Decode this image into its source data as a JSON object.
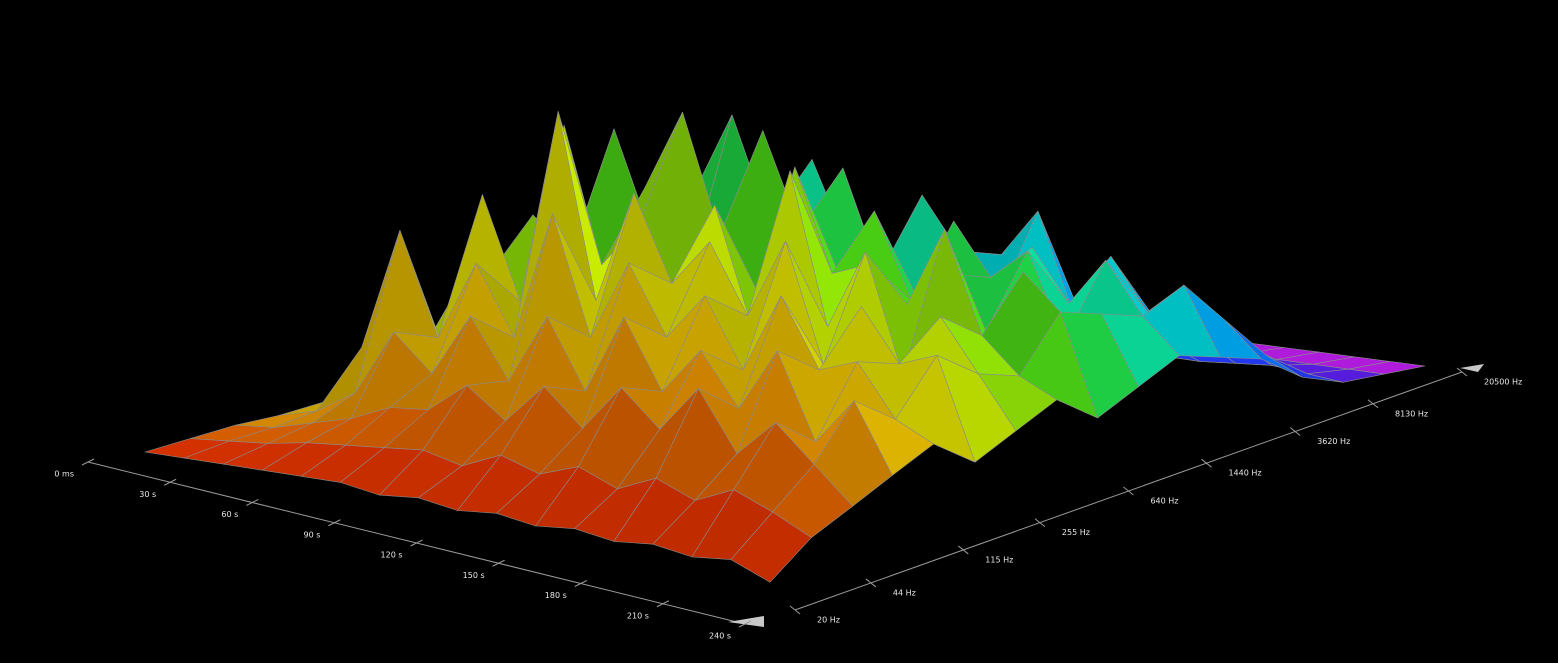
{
  "chart_data": {
    "type": "surface3d",
    "x": [
      0,
      15,
      30,
      45,
      60,
      75,
      90,
      105,
      120,
      135,
      150,
      165,
      180,
      195,
      210,
      225,
      240
    ],
    "y": [
      20,
      31,
      48,
      73,
      113,
      175,
      270,
      416,
      640,
      988,
      1520,
      2350,
      3620,
      5590,
      8620,
      13300,
      20500
    ],
    "z": [
      [
        0,
        1,
        2,
        2,
        3,
        3,
        4,
        5,
        5,
        5,
        4,
        4,
        3,
        2,
        2,
        1,
        0
      ],
      [
        1,
        3,
        4,
        6,
        22,
        10,
        30,
        8,
        12,
        10,
        6,
        5,
        4,
        3,
        2,
        1,
        0
      ],
      [
        2,
        5,
        8,
        14,
        60,
        20,
        40,
        55,
        25,
        12,
        30,
        8,
        6,
        3,
        2,
        1,
        0
      ],
      [
        3,
        8,
        12,
        35,
        30,
        70,
        25,
        45,
        80,
        20,
        15,
        20,
        5,
        4,
        2,
        1,
        0
      ],
      [
        4,
        10,
        18,
        25,
        55,
        40,
        90,
        30,
        50,
        60,
        25,
        10,
        6,
        3,
        2,
        1,
        0
      ],
      [
        5,
        12,
        20,
        45,
        35,
        100,
        50,
        70,
        40,
        85,
        30,
        22,
        8,
        4,
        2,
        1,
        0
      ],
      [
        4,
        14,
        30,
        28,
        75,
        45,
        65,
        95,
        35,
        55,
        70,
        15,
        10,
        5,
        2,
        1,
        0
      ],
      [
        6,
        12,
        22,
        50,
        40,
        80,
        35,
        60,
        88,
        40,
        45,
        30,
        12,
        4,
        2,
        1,
        0
      ],
      [
        5,
        18,
        35,
        30,
        65,
        55,
        75,
        45,
        60,
        75,
        35,
        55,
        18,
        6,
        3,
        1,
        0
      ],
      [
        7,
        15,
        25,
        55,
        45,
        70,
        40,
        85,
        50,
        45,
        65,
        25,
        20,
        8,
        3,
        1,
        0
      ],
      [
        6,
        20,
        40,
        35,
        60,
        50,
        90,
        55,
        70,
        40,
        50,
        45,
        30,
        10,
        3,
        1,
        0
      ],
      [
        8,
        16,
        30,
        50,
        40,
        75,
        45,
        60,
        45,
        65,
        35,
        60,
        25,
        12,
        4,
        2,
        0
      ],
      [
        7,
        22,
        45,
        35,
        65,
        40,
        70,
        50,
        55,
        50,
        55,
        30,
        40,
        15,
        4,
        2,
        0
      ],
      [
        9,
        18,
        28,
        55,
        45,
        60,
        35,
        75,
        40,
        60,
        40,
        50,
        28,
        18,
        5,
        2,
        0
      ],
      [
        8,
        24,
        40,
        30,
        50,
        45,
        55,
        45,
        60,
        35,
        55,
        35,
        35,
        20,
        6,
        2,
        0
      ],
      [
        10,
        20,
        30,
        45,
        35,
        50,
        40,
        35,
        50,
        45,
        40,
        45,
        30,
        15,
        5,
        2,
        0
      ],
      [
        6,
        15,
        20,
        25,
        30,
        20,
        25,
        30,
        20,
        25,
        30,
        25,
        20,
        10,
        4,
        2,
        0
      ]
    ],
    "xlim": [
      0,
      240
    ],
    "ylim": [
      20,
      20500
    ],
    "yscale": "log",
    "zlim": [
      0,
      100
    ],
    "xticks": [
      {
        "value": 0,
        "label": "0 ms"
      },
      {
        "value": 30,
        "label": "30 s"
      },
      {
        "value": 60,
        "label": "60 s"
      },
      {
        "value": 90,
        "label": "90 s"
      },
      {
        "value": 120,
        "label": "120 s"
      },
      {
        "value": 150,
        "label": "150 s"
      },
      {
        "value": 180,
        "label": "180 s"
      },
      {
        "value": 210,
        "label": "210 s"
      },
      {
        "value": 240,
        "label": "240 s"
      }
    ],
    "yticks": [
      {
        "value": 20,
        "label": "20 Hz"
      },
      {
        "value": 44,
        "label": "44 Hz"
      },
      {
        "value": 115,
        "label": "115 Hz"
      },
      {
        "value": 255,
        "label": "255 Hz"
      },
      {
        "value": 640,
        "label": "640 Hz"
      },
      {
        "value": 1440,
        "label": "1440 Hz"
      },
      {
        "value": 3620,
        "label": "3620 Hz"
      },
      {
        "value": 8130,
        "label": "8130 Hz"
      },
      {
        "value": 20500,
        "label": "20500 Hz"
      }
    ],
    "colorscale": [
      "#ff2000",
      "#ff8a00",
      "#ffe800",
      "#c8ff00",
      "#30f020",
      "#00ffe0",
      "#0090ff",
      "#3020ff",
      "#ff20ff"
    ],
    "edge_color": "#8c8c8c"
  }
}
